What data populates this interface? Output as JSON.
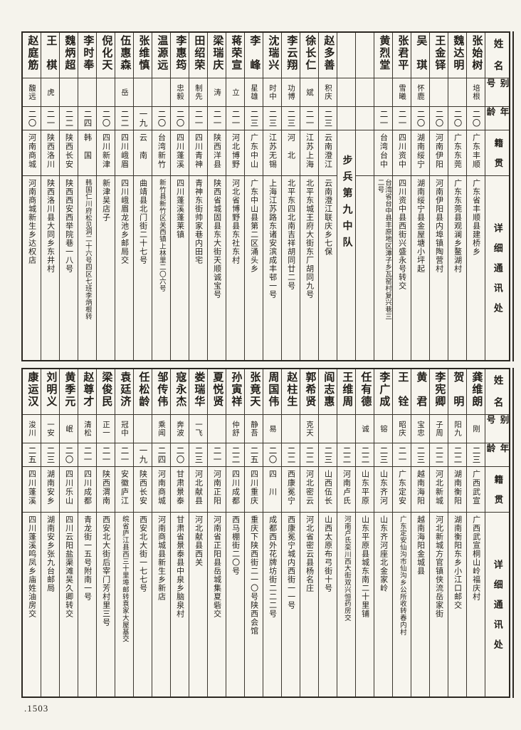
{
  "page": {
    "number": ".1503"
  },
  "headers": {
    "name": "姓名",
    "alias": "别号",
    "age": "年龄",
    "origin": "籍贯",
    "address": "详细通讯处"
  },
  "unit_heading": "步兵第九中队",
  "tables": [
    {
      "people": [
        {
          "name": "张始树",
          "alias": "培根",
          "age": "二〇",
          "origin": "广东丰顺",
          "address": "广东省丰顺县建桥乡"
        },
        {
          "name": "魏达明",
          "alias": "",
          "age": "二〇",
          "origin": "广东东莞",
          "address": "广东东莞县观澜乡鳌湖村"
        },
        {
          "name": "王金铎",
          "alias": "",
          "age": "二〇",
          "origin": "河南伊阳",
          "address": "河南伊阳县内埠镇陶营村"
        },
        {
          "name": "吴琪",
          "alias": "怀鹿",
          "age": "二〇",
          "origin": "湖南绥宁",
          "address": "湖南绥宁县金屋塘小坪起"
        },
        {
          "name": "张君平",
          "alias": "雪曦",
          "age": "二一",
          "origin": "四川资中",
          "address": "四川资中县西街兴盛永号转交"
        },
        {
          "name": "黄烈堂",
          "alias": "",
          "age": "二一",
          "origin": "台湾台中",
          "address": "台湾省台中县丰原地区潭子乡瓦窑村复兴巷三\n二号"
        },
        {
          "type": "spacer"
        },
        {
          "type": "unit"
        },
        {
          "name": "赵多善",
          "alias": "积庆",
          "age": "二三",
          "origin": "云南澄江",
          "address": "云南澄江联庆乡七保"
        },
        {
          "name": "徐长仁",
          "alias": "斌",
          "age": "二一",
          "origin": "江苏上海",
          "address": "北平东城王府大街东厂胡同九号"
        },
        {
          "name": "李云翔",
          "alias": "功博",
          "age": "二三",
          "origin": "河北",
          "address": "北平东四北南吉祥胡同廿二号"
        },
        {
          "name": "沈瑞兴",
          "alias": "时中",
          "age": "二三",
          "origin": "江苏无锡",
          "address": "上海江苏路东诸安滨成丰邨一号"
        },
        {
          "name": "李峰",
          "alias": "星雄",
          "age": "二三",
          "origin": "广东中山",
          "address": "广东中山县第二区涌头乡"
        },
        {
          "name": "蒋荣宣",
          "alias": "立",
          "age": "二一",
          "origin": "河北博野",
          "address": "河北省博野县东社东村"
        },
        {
          "name": "梁瑞庆",
          "alias": "涛",
          "age": "二一",
          "origin": "陕西洋县",
          "address": "陕西省城固县东大街天顺诚宝号"
        },
        {
          "name": "田绍荣",
          "alias": "制先",
          "age": "二一",
          "origin": "四川青神",
          "address": "青神东街帅家巷内田宅"
        },
        {
          "name": "李惠筠",
          "alias": "忠毅",
          "age": "二〇",
          "origin": "四川蓬溪",
          "address": "四川蓬溪蓬莱镇"
        },
        {
          "name": "温源远",
          "alias": "",
          "age": "二〇",
          "origin": "台湾新竹",
          "address": "新竹县新竹区关西镇上林里二〇六号"
        },
        {
          "name": "张维慎",
          "alias": "",
          "age": "一九",
          "origin": "云南",
          "address": "曲靖县北门街二十七号"
        },
        {
          "name": "伍惠森",
          "alias": "岳",
          "age": "二二",
          "origin": "四川峨眉",
          "address": "四川峨眉龙池乡邮局交"
        },
        {
          "name": "倪化天",
          "alias": "",
          "age": "二〇",
          "origin": "四川新津",
          "address": "新津吴店子"
        },
        {
          "name": "李时奉",
          "alias": "",
          "age": "二四",
          "origin": "韩国",
          "address": "韩国仁川府松见洞二十六号四区七班李炳根转"
        },
        {
          "name": "魏炳超",
          "alias": "",
          "age": "二二",
          "origin": "陕西长安",
          "address": "陕西西安西举院巷一八号"
        },
        {
          "name": "王棋",
          "alias": "虎",
          "age": "二一",
          "origin": "陕西洛川",
          "address": "陕西洛川县大同乡东井村"
        },
        {
          "name": "赵庭筋",
          "alias": "馥远",
          "age": "二〇",
          "origin": "河南商城",
          "address": "河南商城新生乡达权店"
        }
      ]
    },
    {
      "people": [
        {
          "name": "龚维朗",
          "alias": "刚",
          "age": "二三",
          "origin": "广西武宣",
          "address": "广西武宣桐山岭福庆村"
        },
        {
          "name": "贺明",
          "alias": "阳九",
          "age": "二二",
          "origin": "湖南衡阳",
          "address": "湖南衡阳东乡小江口邮交"
        },
        {
          "name": "李宪卿",
          "alias": "子周",
          "age": "二二",
          "origin": "河北新城",
          "address": "河北新城方官镇侠流岳家街"
        },
        {
          "name": "黄君",
          "alias": "宝忠",
          "age": "二三",
          "origin": "越南海阳",
          "address": "越南海阳金城县"
        },
        {
          "name": "王铨",
          "alias": "昭庆",
          "age": "二一",
          "origin": "广东定安",
          "address": "广东定安仙沟市仙沟乡公所收转春内村"
        },
        {
          "name": "李广成",
          "alias": "镕",
          "age": "二三",
          "origin": "山东齐河",
          "address": "山东齐河座北金家岭"
        },
        {
          "name": "任有德",
          "alias": "诚",
          "age": "二二",
          "origin": "山东平原",
          "address": "山东平原县城东南二十里铺"
        },
        {
          "name": "王维周",
          "alias": "",
          "age": "二二",
          "origin": "河南卢氏",
          "address": "河南卢氏栾川西大街双兴恒药房交"
        },
        {
          "name": "阎志惠",
          "alias": "",
          "age": "二三",
          "origin": "山西伍长",
          "address": "山西太原布弓街十号"
        },
        {
          "name": "郭希贤",
          "alias": "克天",
          "age": "二二",
          "origin": "河北密云",
          "address": "河北省密云县杨名庄"
        },
        {
          "name": "赵柱生",
          "alias": "",
          "age": "二二",
          "origin": "西康冕宁",
          "address": "西康冕宁城内西街一一号"
        },
        {
          "name": "周国伟",
          "alias": "易",
          "age": "二〇",
          "origin": "四川",
          "address": "成都西外花牌坊街二二二号"
        },
        {
          "name": "张竟天",
          "alias": "静吾",
          "age": "二五",
          "origin": "四川重庆",
          "address": "重庆下陕西街二一〇号陕西会馆"
        },
        {
          "name": "孙寅祥",
          "alias": "仲舒",
          "age": "二二",
          "origin": "四川成都",
          "address": "西马棚街二〇号"
        },
        {
          "name": "夏悦贤",
          "alias": "",
          "age": "二一",
          "origin": "河南正阳",
          "address": "河南省正阳县岳城集夏砦交"
        },
        {
          "name": "娄瑞华",
          "alias": "一飞",
          "age": "二三",
          "origin": "河北献县",
          "address": "河北献县西关"
        },
        {
          "name": "寇永杰",
          "alias": "奔波",
          "age": "二〇",
          "origin": "甘肃景泰",
          "address": "甘肃省景泰县中泉乡脑泉村"
        },
        {
          "name": "邹传伟",
          "alias": "乘闻",
          "age": "二四",
          "origin": "河南商城",
          "address": "河南商城县新生乡新店"
        },
        {
          "name": "任松龄",
          "alias": "",
          "age": "一九",
          "origin": "陕西长安",
          "address": "西安北大街一七七号"
        },
        {
          "name": "袁廷济",
          "alias": "冠中",
          "age": "二一",
          "origin": "安徽庐江",
          "address": "皖省庐江县西三十里埠邮转袁家大屋基交"
        },
        {
          "name": "梁俊民",
          "alias": "正一",
          "age": "二一",
          "origin": "陕西渭南",
          "address": "西安北大街后宰门芳村里三号"
        },
        {
          "name": "赵尊才",
          "alias": "清松",
          "age": "二一",
          "origin": "四川成都",
          "address": "青龙街一五号附南一号"
        },
        {
          "name": "黄季元",
          "alias": "岷",
          "age": "二〇",
          "origin": "四川乐山",
          "address": "四川云阳盐渠滩吴久卿转交"
        },
        {
          "name": "刘明义",
          "alias": "一安",
          "age": "二三",
          "origin": "湖南安乡",
          "address": "湖南安乡张九台邮局"
        },
        {
          "name": "康运汉",
          "alias": "浚川",
          "age": "二五",
          "origin": "四川蓬溪",
          "address": "四川蓬溪鸣凤乡庙姓油房交"
        }
      ]
    }
  ]
}
